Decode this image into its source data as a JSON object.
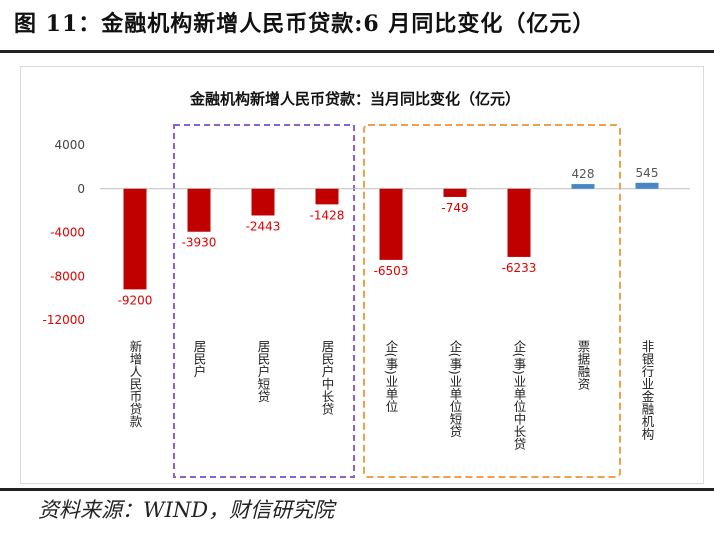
{
  "figure": {
    "title": "图 11：金融机构新增人民币贷款:6 月同比变化（亿元）",
    "source": "资料来源：WIND，财信研究院"
  },
  "colors": {
    "negative_bar": "#c00000",
    "positive_bar": "#4a86c5",
    "negative_label": "#e00000",
    "positive_label": "#555555",
    "household_box": "#8a63c8",
    "enterprise_box": "#f0a04b"
  },
  "chart_data": {
    "type": "bar",
    "title": "金融机构新增人民币贷款：当月同比变化（亿元）",
    "categories": [
      "新增人民币贷款",
      "居民户",
      "居民户短贷",
      "居民户中长贷",
      "企(事)业单位",
      "企(事)业单位短贷",
      "企(事)业单位中长贷",
      "票据融资",
      "非银行业金融机构"
    ],
    "values": [
      -9200,
      -3930,
      -2443,
      -1428,
      -6503,
      -749,
      -6233,
      428,
      545
    ],
    "data_labels": [
      "-9200",
      "-3930",
      "-2443",
      "-1428",
      "-6503",
      "-749",
      "-6233",
      "428",
      "545"
    ],
    "yticks": [
      4000,
      0,
      -4000,
      -8000,
      -12000
    ],
    "ytick_labels": [
      "4000",
      "0",
      "-4000",
      "-8000",
      "-12000"
    ],
    "ylim": [
      -12000,
      4000
    ],
    "grid": false,
    "legend": "none",
    "groups": [
      {
        "name": "household",
        "categories": [
          "居民户",
          "居民户短贷",
          "居民户中长贷"
        ],
        "style": "dashed",
        "color": "#8a63c8"
      },
      {
        "name": "enterprise",
        "categories": [
          "企(事)业单位",
          "企(事)业单位短贷",
          "企(事)业单位中长贷",
          "票据融资"
        ],
        "style": "dashed",
        "color": "#f0a04b"
      }
    ]
  }
}
